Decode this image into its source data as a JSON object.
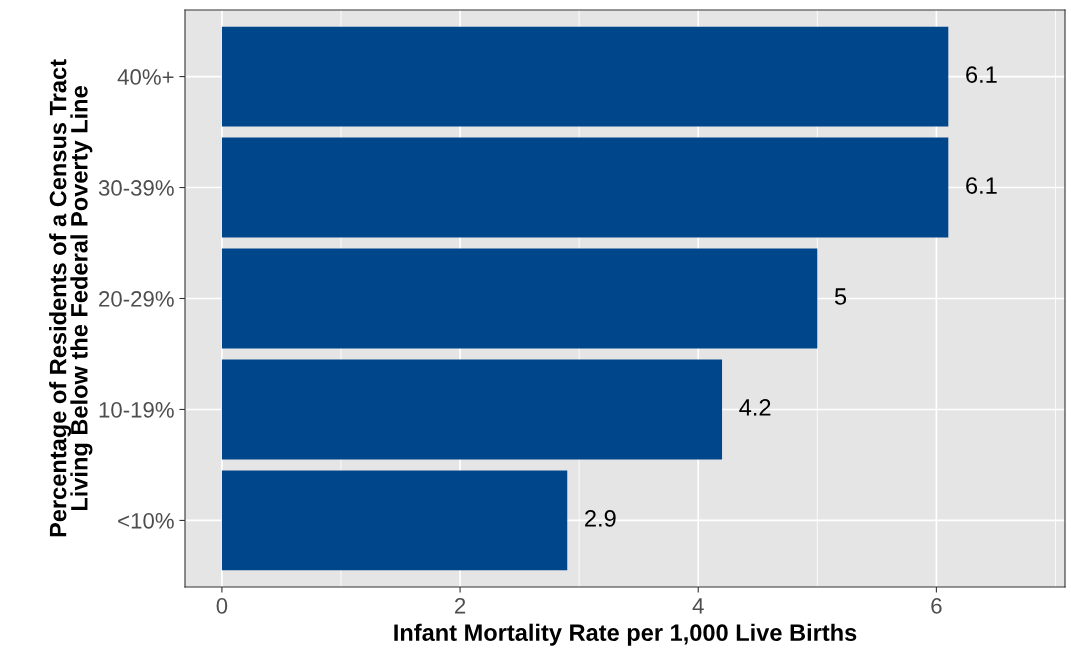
{
  "chart_data": {
    "type": "bar",
    "orientation": "horizontal",
    "xlabel": "Infant Mortality Rate per 1,000 Live Births",
    "ylabel": "Percentage of Residents of a Census Tract\nLiving Below the Federal Poverty Line",
    "categories": [
      "40%+",
      "30-39%",
      "20-29%",
      "10-19%",
      "<10%"
    ],
    "values": [
      6.1,
      6.1,
      5,
      4.2,
      2.9
    ],
    "color": "#00468b",
    "xlim": [
      -0.31,
      7.08
    ],
    "xticks": [
      0,
      2,
      4,
      6
    ],
    "grid": true,
    "data_labels": true
  }
}
